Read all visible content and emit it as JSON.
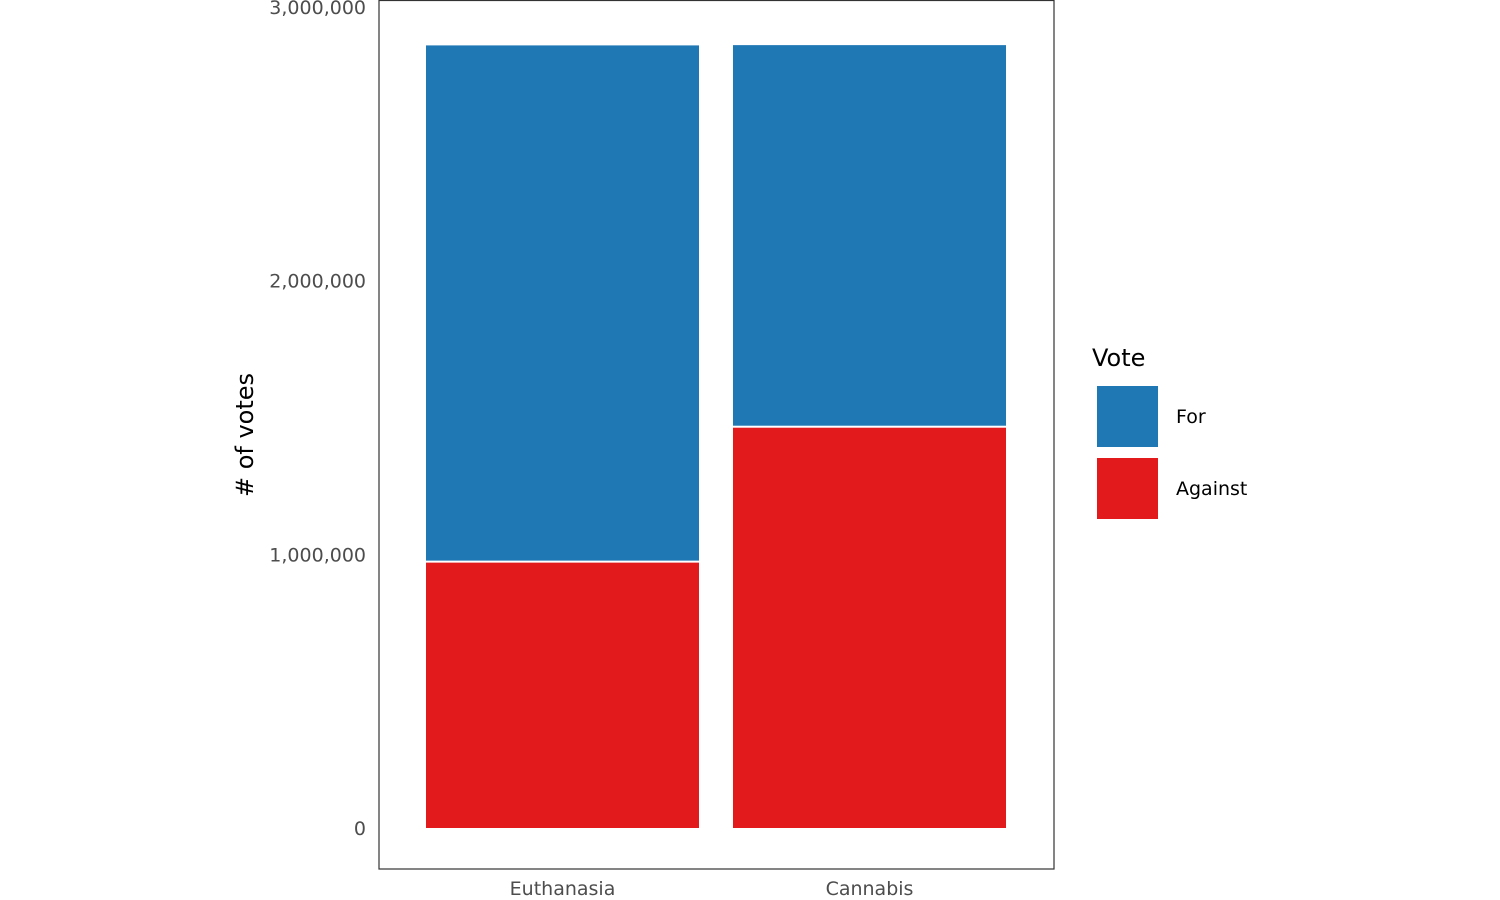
{
  "chart_data": {
    "type": "bar",
    "stacked": true,
    "categories": [
      "Euthanasia",
      "Cannabis"
    ],
    "series": [
      {
        "name": "Against",
        "color": "#E31A1C",
        "values": [
          977000,
          1470000
        ]
      },
      {
        "name": "For",
        "color": "#1F78B4",
        "values": [
          1890000,
          1398000
        ]
      }
    ],
    "ylabel": "# of votes",
    "xlabel": "",
    "ylim": [
      0,
      3000000
    ],
    "y_ticks": [
      0,
      1000000,
      2000000,
      3000000
    ],
    "y_tick_labels": [
      "0",
      "1,000,000",
      "2,000,000",
      "3,000,000"
    ],
    "legend": {
      "title": "Vote",
      "position": "right",
      "items": [
        {
          "label": "For",
          "color": "#1F78B4"
        },
        {
          "label": "Against",
          "color": "#E31A1C"
        }
      ]
    },
    "grid": false
  }
}
